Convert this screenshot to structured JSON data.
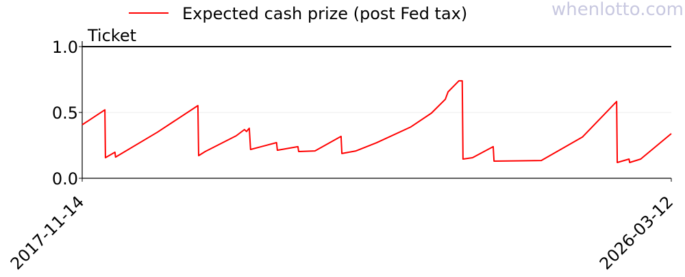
{
  "watermark": "whenlotto.com",
  "chart_data": {
    "type": "line",
    "ylabel": "Ticket",
    "xlabel": "",
    "ylim": [
      0,
      1.0
    ],
    "xlim": [
      "2017-11-14",
      "2026-03-12"
    ],
    "x_tick_labels": [
      "2017-11-14",
      "2026-03-12"
    ],
    "y_tick_labels": [
      "0.0",
      "0.5",
      "1.0"
    ],
    "y_ticks": [
      0,
      0.5,
      1.0
    ],
    "grid": "horizontal at 0.5 (faint)",
    "legend_position": "top-center",
    "reference_line": {
      "y": 1.0,
      "color": "#000000"
    },
    "series": [
      {
        "name": "Expected cash prize (post Fed tax)",
        "color": "#ff0000",
        "points": [
          [
            "2017-11-14",
            0.406
          ],
          [
            "2018-03-11",
            0.52
          ],
          [
            "2018-03-14",
            0.156
          ],
          [
            "2018-05-02",
            0.198
          ],
          [
            "2018-05-05",
            0.161
          ],
          [
            "2018-12-07",
            0.35
          ],
          [
            "2019-07-04",
            0.552
          ],
          [
            "2019-07-08",
            0.172
          ],
          [
            "2019-08-11",
            0.203
          ],
          [
            "2020-01-18",
            0.323
          ],
          [
            "2020-02-29",
            0.37
          ],
          [
            "2020-03-11",
            0.355
          ],
          [
            "2020-03-25",
            0.38
          ],
          [
            "2020-04-01",
            0.219
          ],
          [
            "2020-08-13",
            0.271
          ],
          [
            "2020-08-17",
            0.213
          ],
          [
            "2020-12-01",
            0.24
          ],
          [
            "2020-12-05",
            0.203
          ],
          [
            "2021-02-27",
            0.208
          ],
          [
            "2021-07-12",
            0.318
          ],
          [
            "2021-07-16",
            0.188
          ],
          [
            "2021-09-27",
            0.208
          ],
          [
            "2022-01-11",
            0.27
          ],
          [
            "2022-07-07",
            0.39
          ],
          [
            "2022-10-21",
            0.495
          ],
          [
            "2023-01-01",
            0.6
          ],
          [
            "2023-01-15",
            0.656
          ],
          [
            "2023-03-12",
            0.74
          ],
          [
            "2023-03-29",
            0.74
          ],
          [
            "2023-04-02",
            0.146
          ],
          [
            "2023-05-21",
            0.156
          ],
          [
            "2023-09-05",
            0.24
          ],
          [
            "2023-09-09",
            0.13
          ],
          [
            "2024-05-10",
            0.135
          ],
          [
            "2024-12-08",
            0.313
          ],
          [
            "2025-06-03",
            0.583
          ],
          [
            "2025-06-06",
            0.12
          ],
          [
            "2025-08-06",
            0.146
          ],
          [
            "2025-08-09",
            0.12
          ],
          [
            "2025-10-05",
            0.146
          ],
          [
            "2026-03-12",
            0.339
          ]
        ]
      }
    ]
  }
}
